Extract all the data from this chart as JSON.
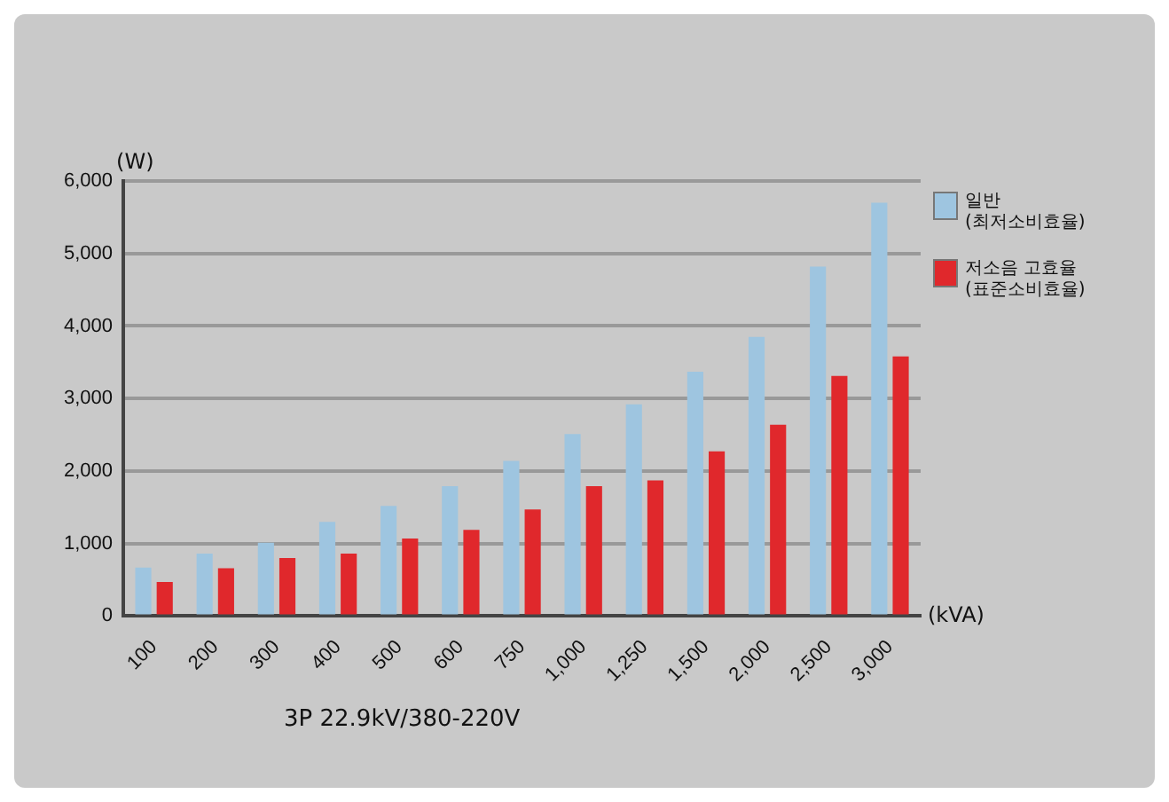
{
  "chart_data": {
    "type": "bar",
    "ylabel": "(W)",
    "xlabel": "(kVA)",
    "annotations": [
      "3P 22.9kV/380-220V"
    ],
    "categories": [
      "100",
      "200",
      "300",
      "400",
      "500",
      "600",
      "750",
      "1,000",
      "1,250",
      "1,500",
      "2,000",
      "2,500",
      "3,000"
    ],
    "series": [
      {
        "name": "일반 (최저소비효율)",
        "color": "#9ec5e0",
        "values": [
          670,
          860,
          1010,
          1300,
          1520,
          1790,
          2140,
          2510,
          2920,
          3370,
          3850,
          4820,
          5700
        ]
      },
      {
        "name": "저소음 고효율 (표준소비효율)",
        "color": "#e0282c",
        "values": [
          470,
          660,
          800,
          860,
          1070,
          1190,
          1470,
          1790,
          1870,
          2270,
          2640,
          3310,
          3580
        ]
      }
    ],
    "ylim": [
      0,
      6000
    ],
    "yticks": [
      0,
      {
        "value": 1000,
        "label": "1,000"
      },
      {
        "value": 2000,
        "label": "2,000"
      },
      {
        "value": 3000,
        "label": "3,000"
      },
      {
        "value": 4000,
        "label": "4,000"
      },
      {
        "value": 5000,
        "label": "5,000"
      },
      {
        "value": 6000,
        "label": "6,000"
      }
    ],
    "grid": "y",
    "legend": "right"
  }
}
